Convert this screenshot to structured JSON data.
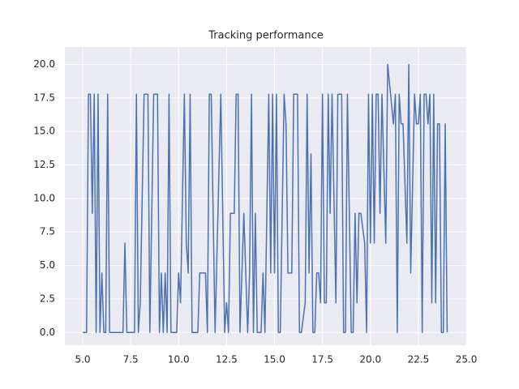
{
  "chart_data": {
    "type": "line",
    "title": "Tracking performance",
    "x": [
      5.0,
      5.1,
      5.2,
      5.3,
      5.4,
      5.5,
      5.6,
      5.7,
      5.8,
      5.9,
      6.0,
      6.1,
      6.2,
      6.3,
      6.4,
      7.1,
      7.2,
      7.3,
      7.7,
      7.8,
      7.9,
      8.0,
      8.2,
      8.4,
      8.5,
      8.7,
      8.9,
      9.0,
      9.1,
      9.2,
      9.3,
      9.4,
      9.5,
      9.6,
      9.9,
      10.0,
      10.1,
      10.3,
      10.4,
      10.5,
      10.6,
      10.7,
      11.0,
      11.1,
      11.4,
      11.5,
      11.6,
      11.7,
      11.9,
      12.2,
      12.4,
      12.5,
      12.6,
      12.7,
      12.9,
      13.0,
      13.1,
      13.2,
      13.4,
      13.6,
      13.7,
      13.8,
      13.9,
      14.0,
      14.1,
      14.3,
      14.4,
      14.5,
      14.7,
      14.8,
      14.9,
      15.0,
      15.1,
      15.2,
      15.3,
      15.5,
      15.6,
      15.7,
      15.9,
      16.0,
      16.2,
      16.3,
      16.4,
      16.6,
      16.7,
      16.8,
      16.9,
      17.0,
      17.1,
      17.2,
      17.3,
      17.4,
      17.5,
      17.6,
      17.7,
      17.8,
      17.9,
      18.0,
      18.2,
      18.3,
      18.5,
      18.6,
      18.7,
      18.8,
      19.0,
      19.1,
      19.2,
      19.3,
      19.4,
      19.5,
      19.7,
      19.8,
      19.9,
      20.0,
      20.1,
      20.2,
      20.3,
      20.4,
      20.5,
      20.6,
      20.8,
      20.9,
      21.2,
      21.3,
      21.4,
      21.5,
      21.6,
      21.7,
      21.9,
      22.0,
      22.1,
      22.3,
      22.4,
      22.5,
      22.6,
      22.7,
      22.8,
      22.9,
      23.0,
      23.1,
      23.2,
      23.3,
      23.4,
      23.5,
      23.6,
      23.7,
      23.8,
      23.9,
      24.0
    ],
    "series": [
      {
        "color": "#4c72b0",
        "values": [
          0,
          0,
          0,
          17.78,
          17.78,
          8.89,
          17.78,
          0,
          17.78,
          0,
          4.44,
          0,
          0,
          17.78,
          0,
          0,
          6.67,
          0,
          0,
          17.78,
          0,
          2.22,
          17.78,
          17.78,
          0,
          17.78,
          17.78,
          0,
          4.44,
          0,
          4.44,
          0,
          17.78,
          0,
          0,
          4.44,
          2.22,
          17.78,
          6.67,
          4.44,
          17.78,
          0,
          0,
          4.44,
          4.44,
          0,
          17.78,
          17.78,
          0,
          17.78,
          0,
          2.22,
          0,
          8.89,
          8.89,
          17.78,
          17.78,
          0,
          8.89,
          0,
          4.44,
          17.78,
          0,
          8.89,
          0,
          0,
          4.44,
          0,
          17.78,
          4.44,
          17.78,
          4.44,
          17.78,
          0,
          0,
          17.78,
          15.56,
          4.44,
          4.44,
          17.78,
          17.78,
          0,
          0,
          2.22,
          17.78,
          4.44,
          13.33,
          0,
          0,
          4.44,
          4.44,
          2.22,
          17.78,
          2.22,
          2.22,
          17.78,
          8.89,
          17.78,
          2.22,
          17.78,
          17.78,
          0,
          0,
          17.78,
          0,
          0,
          8.89,
          2.22,
          8.89,
          8.89,
          6.67,
          0,
          17.78,
          6.67,
          17.78,
          6.67,
          17.78,
          17.78,
          8.89,
          17.78,
          6.67,
          20,
          15.56,
          17.78,
          0,
          17.78,
          15.56,
          15.56,
          6.67,
          20,
          4.44,
          17.78,
          15.56,
          15.56,
          17.78,
          0,
          17.78,
          17.78,
          15.56,
          17.78,
          2.22,
          17.78,
          2.22,
          15.56,
          15.56,
          0,
          0,
          15.56,
          0
        ]
      }
    ],
    "xlim": [
      4.07,
      25.04
    ],
    "ylim": [
      -0.95,
      21.3
    ],
    "xticks": [
      {
        "value": 5,
        "label": "5.0"
      },
      {
        "value": 7.5,
        "label": "7.5"
      },
      {
        "value": 10,
        "label": "10.0"
      },
      {
        "value": 12.5,
        "label": "12.5"
      },
      {
        "value": 15,
        "label": "15.0"
      },
      {
        "value": 17.5,
        "label": "17.5"
      },
      {
        "value": 20,
        "label": "20.0"
      },
      {
        "value": 22.5,
        "label": "22.5"
      },
      {
        "value": 25,
        "label": "25.0"
      }
    ],
    "yticks": [
      {
        "value": 0,
        "label": "0.0"
      },
      {
        "value": 2.5,
        "label": "2.5"
      },
      {
        "value": 5,
        "label": "5.0"
      },
      {
        "value": 7.5,
        "label": "7.5"
      },
      {
        "value": 10,
        "label": "10.0"
      },
      {
        "value": 12.5,
        "label": "12.5"
      },
      {
        "value": 15,
        "label": "15.0"
      },
      {
        "value": 17.5,
        "label": "17.5"
      },
      {
        "value": 20,
        "label": "20.0"
      }
    ],
    "grid": true
  }
}
